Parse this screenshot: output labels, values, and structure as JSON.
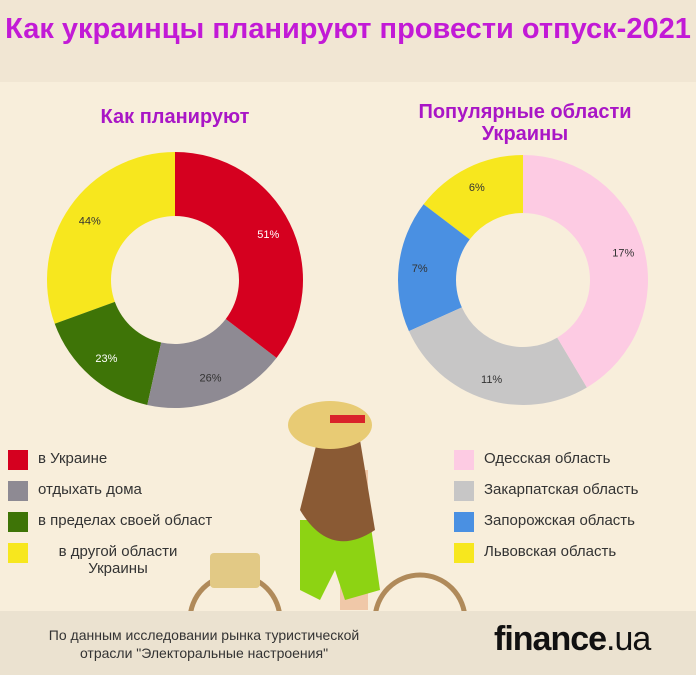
{
  "title": "Как украинцы планируют провести отпуск-2021",
  "chart_data": [
    {
      "type": "pie",
      "title": "Как планируют",
      "categories": [
        "в Украине",
        "отдыхать дома",
        "в пределах своей област",
        "в другой области Украины"
      ],
      "values": [
        51,
        26,
        23,
        44
      ],
      "labels": [
        "51%",
        "26%",
        "23%",
        "44%"
      ],
      "colors": [
        "#d5001f",
        "#8e8a93",
        "#3e7407",
        "#f7e71e"
      ],
      "donut": true
    },
    {
      "type": "pie",
      "title": "Популярные области Украины",
      "categories": [
        "Одесская область",
        "Закарпатская область",
        "Запорожская область",
        "Львовская область"
      ],
      "values": [
        17,
        11,
        7,
        6
      ],
      "labels": [
        "17%",
        "11%",
        "7%",
        "6%"
      ],
      "colors": [
        "#fdcbe3",
        "#c7c6c6",
        "#4a90e2",
        "#f7e71e"
      ],
      "donut": true
    }
  ],
  "footer": {
    "source": "По данным исследовании рынка туристической отрасли \"Электоральные настроения\"",
    "logo_main": "finance",
    "logo_tld": ".ua"
  }
}
